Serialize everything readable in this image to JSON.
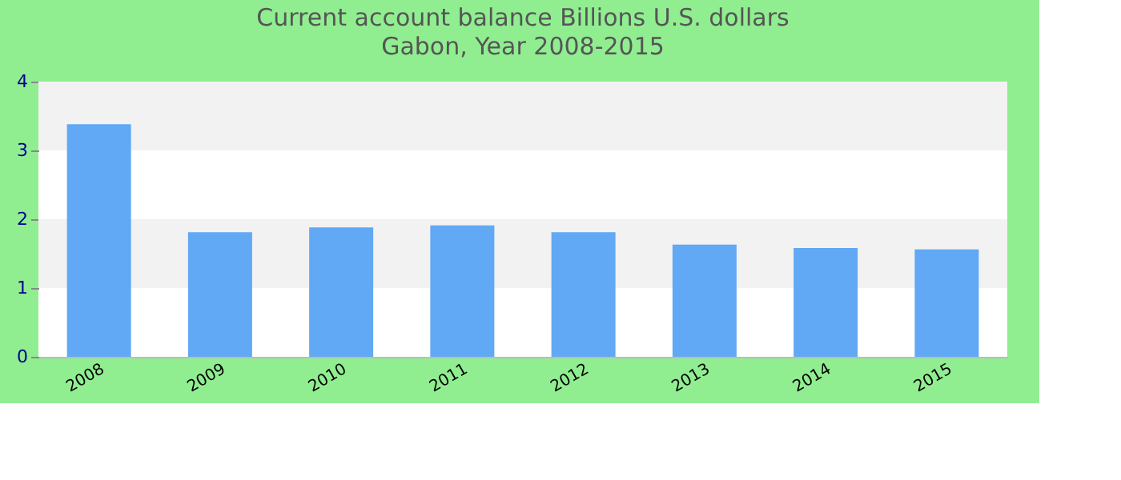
{
  "chart_data": {
    "type": "bar",
    "title": "Current account balance Billions U.S. dollars",
    "subtitle": "Gabon, Year 2008-2015",
    "categories": [
      "2008",
      "2009",
      "2010",
      "2011",
      "2012",
      "2013",
      "2014",
      "2015"
    ],
    "values": [
      3.38,
      1.81,
      1.88,
      1.91,
      1.81,
      1.63,
      1.58,
      1.56
    ],
    "color": "#61a8f5",
    "ylim": [
      0,
      4
    ],
    "yticks": [
      0,
      1,
      2,
      3,
      4
    ],
    "grid": false,
    "bands": [
      {
        "axis": "y",
        "from": 1,
        "to": 2,
        "color": "#f2f2f2"
      },
      {
        "axis": "y",
        "from": 3,
        "to": 4,
        "color": "#f2f2f2"
      }
    ]
  }
}
